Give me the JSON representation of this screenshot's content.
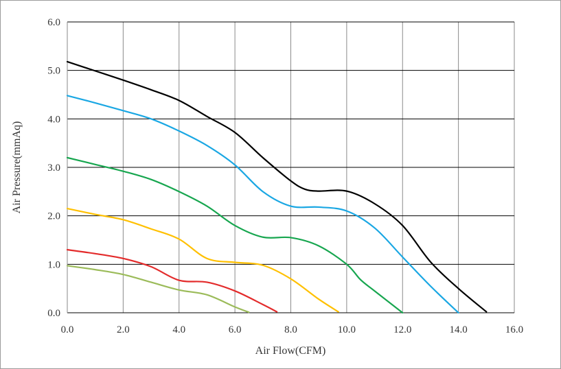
{
  "chart_data": {
    "type": "line",
    "title": "",
    "xlabel": "Air Flow(CFM)",
    "ylabel": "Air Pressure(mmAq)",
    "xlim": [
      0,
      16
    ],
    "ylim": [
      0,
      6
    ],
    "xticks": [
      "0.0",
      "2.0",
      "4.0",
      "6.0",
      "8.0",
      "10.0",
      "12.0",
      "14.0",
      "16.0"
    ],
    "yticks": [
      "0.0",
      "1.0",
      "2.0",
      "3.0",
      "4.0",
      "5.0",
      "6.0"
    ],
    "grid": true,
    "legend": "none",
    "series": [
      {
        "color": "#000000",
        "points": [
          [
            0,
            5.18
          ],
          [
            1,
            4.99
          ],
          [
            2,
            4.8
          ],
          [
            3,
            4.6
          ],
          [
            4,
            4.38
          ],
          [
            5,
            4.05
          ],
          [
            6,
            3.72
          ],
          [
            7,
            3.2
          ],
          [
            8,
            2.72
          ],
          [
            8.5,
            2.55
          ],
          [
            9,
            2.51
          ],
          [
            10,
            2.51
          ],
          [
            11,
            2.25
          ],
          [
            12,
            1.8
          ],
          [
            13,
            1.05
          ],
          [
            14,
            0.5
          ],
          [
            15,
            0.02
          ]
        ]
      },
      {
        "color": "#1aa7e3",
        "points": [
          [
            0,
            4.48
          ],
          [
            1,
            4.33
          ],
          [
            2,
            4.17
          ],
          [
            3,
            4.0
          ],
          [
            4,
            3.75
          ],
          [
            5,
            3.45
          ],
          [
            6,
            3.05
          ],
          [
            7,
            2.5
          ],
          [
            8,
            2.2
          ],
          [
            9,
            2.18
          ],
          [
            10,
            2.1
          ],
          [
            11,
            1.75
          ],
          [
            12,
            1.15
          ],
          [
            13,
            0.55
          ],
          [
            14,
            0.0
          ]
        ]
      },
      {
        "color": "#17a64f",
        "points": [
          [
            0,
            3.2
          ],
          [
            1,
            3.06
          ],
          [
            2,
            2.92
          ],
          [
            3,
            2.75
          ],
          [
            4,
            2.5
          ],
          [
            5,
            2.2
          ],
          [
            6,
            1.8
          ],
          [
            7,
            1.56
          ],
          [
            8,
            1.55
          ],
          [
            9,
            1.38
          ],
          [
            10,
            1.0
          ],
          [
            10.5,
            0.68
          ],
          [
            11,
            0.45
          ],
          [
            12,
            0.0
          ]
        ]
      },
      {
        "color": "#ffc000",
        "points": [
          [
            0,
            2.15
          ],
          [
            1,
            2.03
          ],
          [
            2,
            1.92
          ],
          [
            3,
            1.73
          ],
          [
            4,
            1.52
          ],
          [
            5,
            1.12
          ],
          [
            6,
            1.04
          ],
          [
            7,
            0.98
          ],
          [
            8,
            0.7
          ],
          [
            9,
            0.28
          ],
          [
            9.7,
            0.02
          ]
        ]
      },
      {
        "color": "#e32b2b",
        "points": [
          [
            0,
            1.3
          ],
          [
            1,
            1.22
          ],
          [
            2,
            1.12
          ],
          [
            3,
            0.95
          ],
          [
            4,
            0.67
          ],
          [
            5,
            0.63
          ],
          [
            6,
            0.45
          ],
          [
            7,
            0.17
          ],
          [
            7.5,
            0.02
          ]
        ]
      },
      {
        "color": "#9bbb59",
        "points": [
          [
            0,
            0.97
          ],
          [
            1,
            0.89
          ],
          [
            2,
            0.79
          ],
          [
            3,
            0.63
          ],
          [
            4,
            0.47
          ],
          [
            5,
            0.37
          ],
          [
            6,
            0.12
          ],
          [
            6.5,
            0.01
          ]
        ]
      }
    ]
  }
}
